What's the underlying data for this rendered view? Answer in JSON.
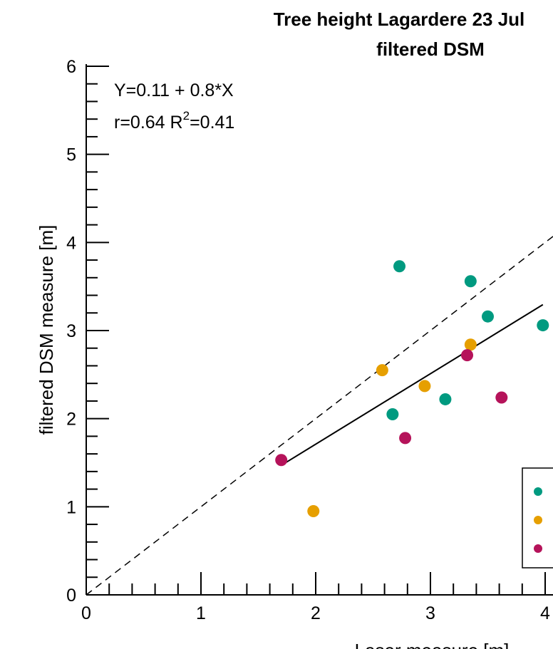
{
  "chart_data": {
    "type": "scatter",
    "title_line1": "Tree height Lagardere 23 Jul",
    "title_line2": "filtered DSM",
    "xlabel": "Laser measure [m]",
    "ylabel": "filtered DSM  measure [m]",
    "xlim": [
      0,
      4.1
    ],
    "ylim": [
      0,
      6
    ],
    "x_ticks": [
      "0",
      "1",
      "2",
      "3",
      "4"
    ],
    "y_ticks": [
      "0",
      "1",
      "2",
      "3",
      "4",
      "5",
      "6"
    ],
    "annotations": {
      "equation": "Y=0.11 + 0.8*X",
      "r_text": "r=0.64  R",
      "r2_sup": "2",
      "r2_value": "=0.41"
    },
    "regression": {
      "intercept": 0.11,
      "slope": 0.8,
      "x_range": [
        1.7,
        3.98
      ]
    },
    "identity_line": {
      "slope": 1,
      "intercept": 0,
      "style": "dashed"
    },
    "legend": {
      "placement": "lower-right",
      "truncated": true
    },
    "series": [
      {
        "color": "#009a80",
        "points": [
          [
            2.73,
            3.73
          ],
          [
            3.35,
            3.56
          ],
          [
            3.5,
            3.16
          ],
          [
            3.98,
            3.06
          ],
          [
            2.67,
            2.05
          ],
          [
            3.13,
            2.22
          ]
        ]
      },
      {
        "color": "#e69f00",
        "points": [
          [
            2.58,
            2.55
          ],
          [
            2.95,
            2.37
          ],
          [
            3.35,
            2.84
          ],
          [
            1.98,
            0.95
          ]
        ]
      },
      {
        "color": "#b5135a",
        "points": [
          [
            1.7,
            1.53
          ],
          [
            2.78,
            1.78
          ],
          [
            3.32,
            2.72
          ],
          [
            3.62,
            2.24
          ]
        ]
      }
    ]
  }
}
